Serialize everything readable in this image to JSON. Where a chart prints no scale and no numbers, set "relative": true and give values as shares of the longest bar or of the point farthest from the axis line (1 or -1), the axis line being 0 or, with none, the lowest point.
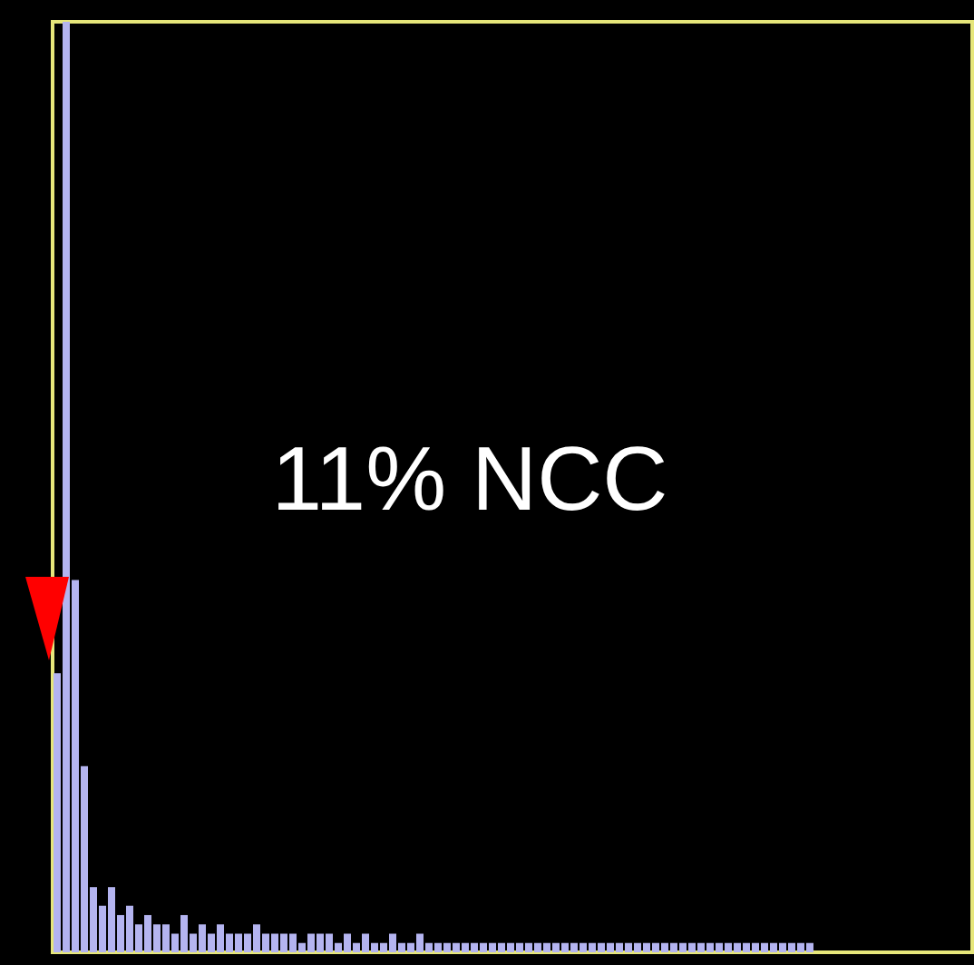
{
  "chart_data": {
    "type": "bar",
    "relative": true,
    "tick_labels": false,
    "color": "#b4b4f0",
    "annotations": [
      "11% NCC"
    ],
    "categories": [
      null,
      null,
      null,
      null,
      null,
      null,
      null,
      null,
      null,
      null,
      null,
      null,
      null,
      null,
      null,
      null,
      null,
      null,
      null,
      null,
      null,
      null,
      null,
      null,
      null,
      null,
      null,
      null,
      null,
      null,
      null,
      null,
      null,
      null,
      null,
      null,
      null,
      null,
      null,
      null,
      null,
      null,
      null,
      null,
      null,
      null,
      null,
      null,
      null,
      null,
      null,
      null,
      null,
      null,
      null,
      null,
      null,
      null,
      null,
      null,
      null,
      null,
      null,
      null,
      null,
      null,
      null,
      null,
      null,
      null,
      null,
      null,
      null,
      null,
      null,
      null,
      null,
      null,
      null,
      null,
      null,
      null,
      null,
      null
    ],
    "values": [
      0.3,
      1.0,
      0.4,
      0.2,
      0.07,
      0.05,
      0.07,
      0.04,
      0.05,
      0.03,
      0.04,
      0.03,
      0.03,
      0.02,
      0.04,
      0.02,
      0.03,
      0.02,
      0.03,
      0.02,
      0.02,
      0.02,
      0.03,
      0.02,
      0.02,
      0.02,
      0.02,
      0.01,
      0.02,
      0.02,
      0.02,
      0.01,
      0.02,
      0.01,
      0.02,
      0.01,
      0.01,
      0.02,
      0.01,
      0.01,
      0.02,
      0.01,
      0.01,
      0.01,
      0.01,
      0.01,
      0.01,
      0.01,
      0.01,
      0.01,
      0.01,
      0.01,
      0.01,
      0.01,
      0.01,
      0.01,
      0.01,
      0.01,
      0.01,
      0.01,
      0.01,
      0.01,
      0.01,
      0.01,
      0.01,
      0.01,
      0.01,
      0.01,
      0.01,
      0.01,
      0.01,
      0.01,
      0.01,
      0.01,
      0.01,
      0.01,
      0.01,
      0.01,
      0.01,
      0.01,
      0.01,
      0.01,
      0.01,
      0.01
    ]
  }
}
